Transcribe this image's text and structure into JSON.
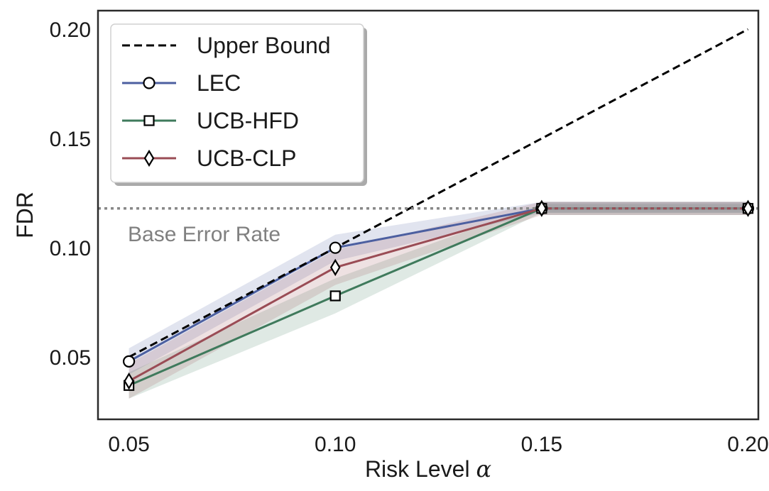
{
  "chart_data": {
    "type": "line",
    "x": [
      0.05,
      0.1,
      0.15,
      0.2
    ],
    "xticks": [
      "0.05",
      "0.10",
      "0.15",
      "0.20"
    ],
    "yticks": [
      "0.05",
      "0.10",
      "0.15",
      "0.20"
    ],
    "xlim": [
      0.0425,
      0.2025
    ],
    "ylim": [
      0.0215,
      0.2085
    ],
    "xlabel": "Risk Level",
    "xlabel_symbol": "α",
    "ylabel": "FDR",
    "grid": false,
    "legend_position": "top-left",
    "series": [
      {
        "name": "Upper Bound",
        "style": "dashed",
        "color": "#000000",
        "marker": "none",
        "values": [
          0.05,
          0.1,
          0.15,
          0.2
        ]
      },
      {
        "name": "LEC",
        "style": "solid",
        "color": "#4c5fa0",
        "marker": "circle",
        "values": [
          0.048,
          0.1,
          0.118,
          0.118
        ],
        "band_low": [
          0.042,
          0.094,
          0.116,
          0.116
        ],
        "band_high": [
          0.054,
          0.106,
          0.121,
          0.121
        ]
      },
      {
        "name": "UCB-HFD",
        "style": "solid",
        "color": "#3f7a5c",
        "marker": "square",
        "values": [
          0.037,
          0.078,
          0.118,
          0.118
        ],
        "band_low": [
          0.031,
          0.07,
          0.116,
          0.116
        ],
        "band_high": [
          0.043,
          0.086,
          0.12,
          0.12
        ]
      },
      {
        "name": "UCB-CLP",
        "style": "solid",
        "color": "#9a4c55",
        "marker": "diamond",
        "values": [
          0.039,
          0.091,
          0.118,
          0.118
        ],
        "band_low": [
          0.031,
          0.083,
          0.115,
          0.115
        ],
        "band_high": [
          0.047,
          0.099,
          0.121,
          0.121
        ]
      }
    ],
    "base_error": {
      "value": 0.118,
      "label": "Base Error Rate",
      "color": "#888888"
    }
  }
}
